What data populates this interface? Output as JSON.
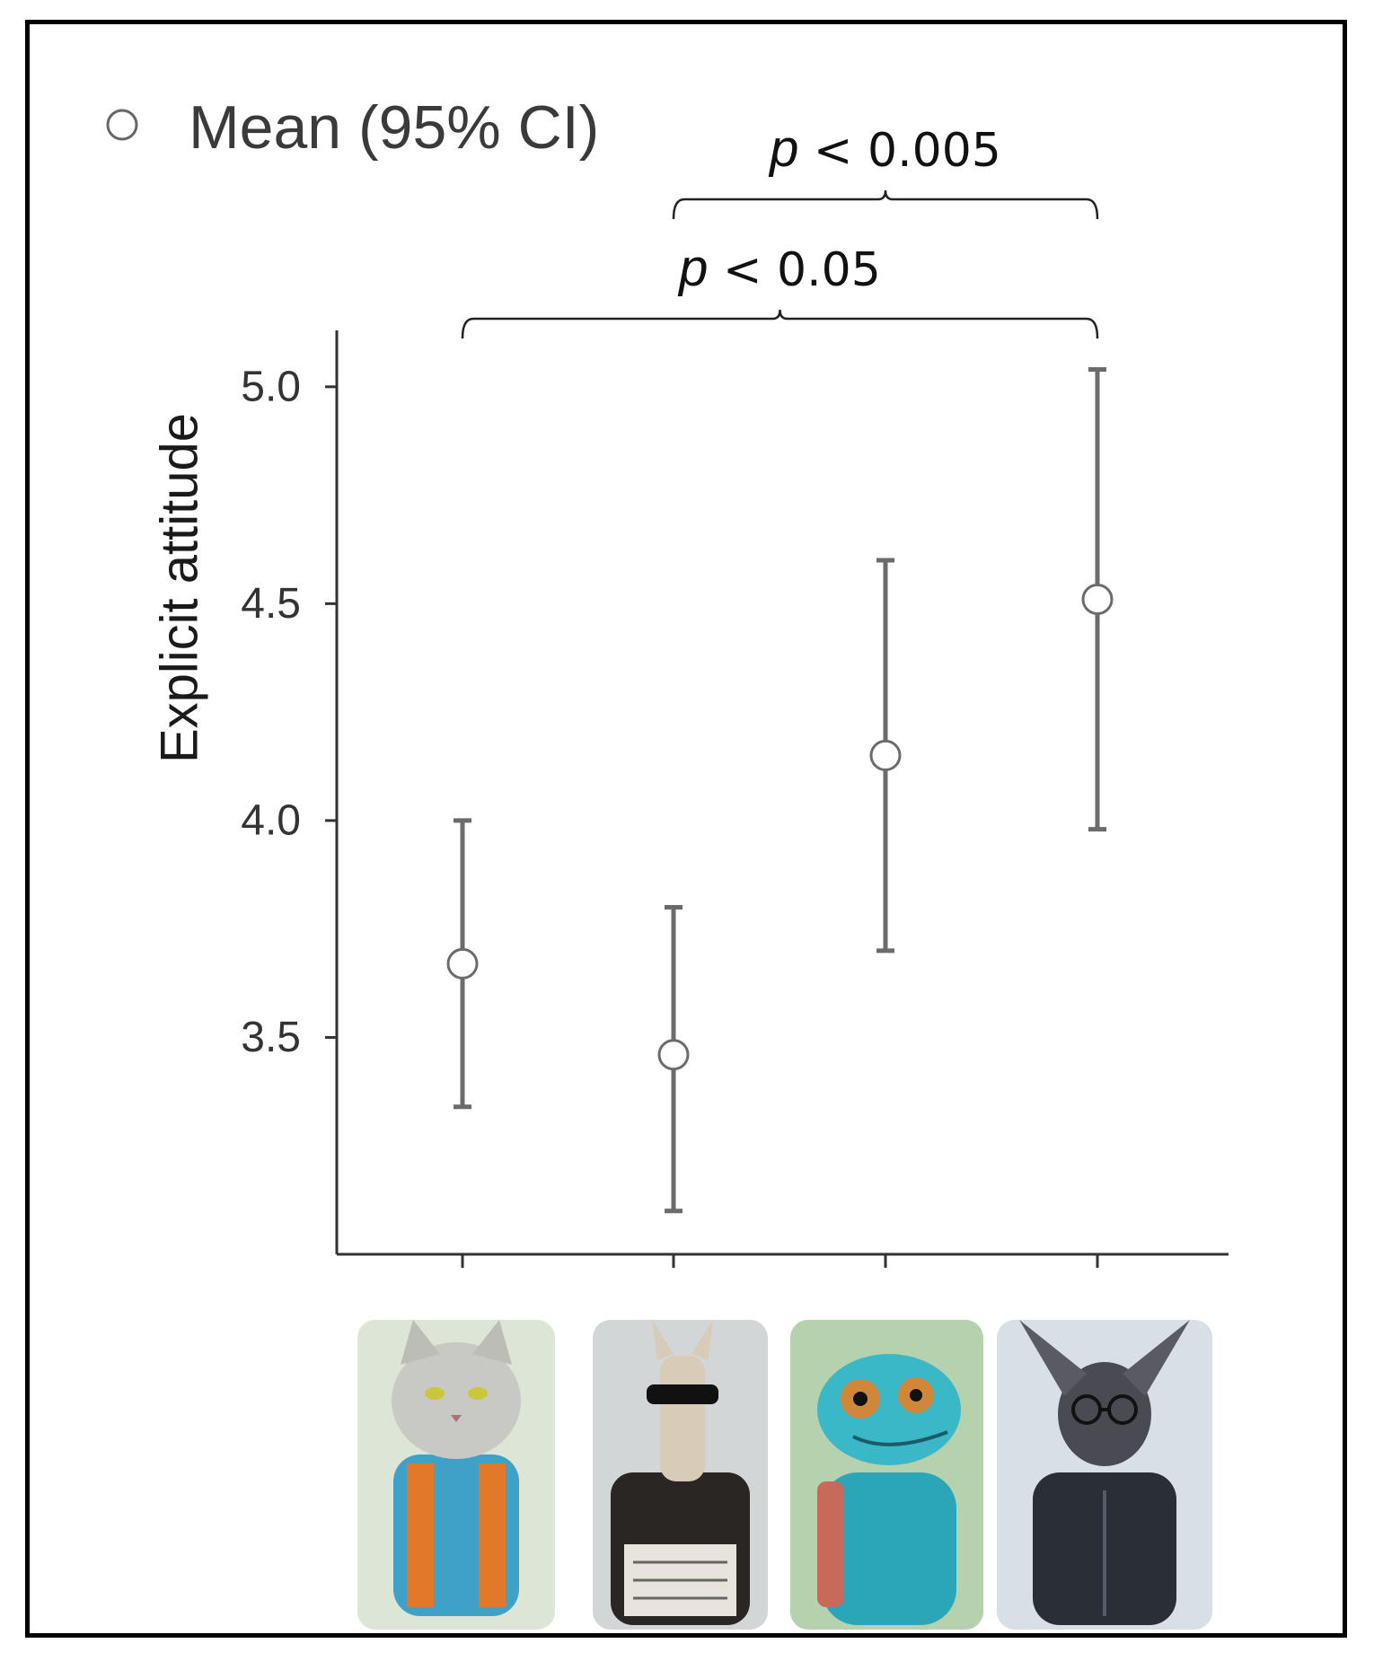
{
  "chart_data": {
    "type": "scatter",
    "ylabel": "Explicit attitude",
    "xlabel": "",
    "ylim": [
      3.0,
      5.13
    ],
    "yticks": [
      "3.5",
      "4.0",
      "4.5",
      "5.0"
    ],
    "categories": [
      "",
      "",
      "",
      ""
    ],
    "points": [
      {
        "mean": 3.67,
        "ci_low": 3.34,
        "ci_high": 4.0
      },
      {
        "mean": 3.46,
        "ci_low": 3.1,
        "ci_high": 3.8
      },
      {
        "mean": 4.15,
        "ci_low": 3.7,
        "ci_high": 4.6
      },
      {
        "mean": 4.51,
        "ci_low": 3.98,
        "ci_high": 5.04
      }
    ],
    "legend": {
      "label": "Mean (95% CI)",
      "position": "top-left"
    },
    "grid": false,
    "annotations": [
      {
        "p_symbol": "p",
        "text": " < 0.005",
        "from": 2,
        "to": 4
      },
      {
        "p_symbol": "p",
        "text": " < 0.05",
        "from": 1,
        "to": 4
      }
    ],
    "category_images": [
      "cat-character-icon",
      "llama-character-icon",
      "chameleon-character-icon",
      "bat-character-icon"
    ]
  }
}
